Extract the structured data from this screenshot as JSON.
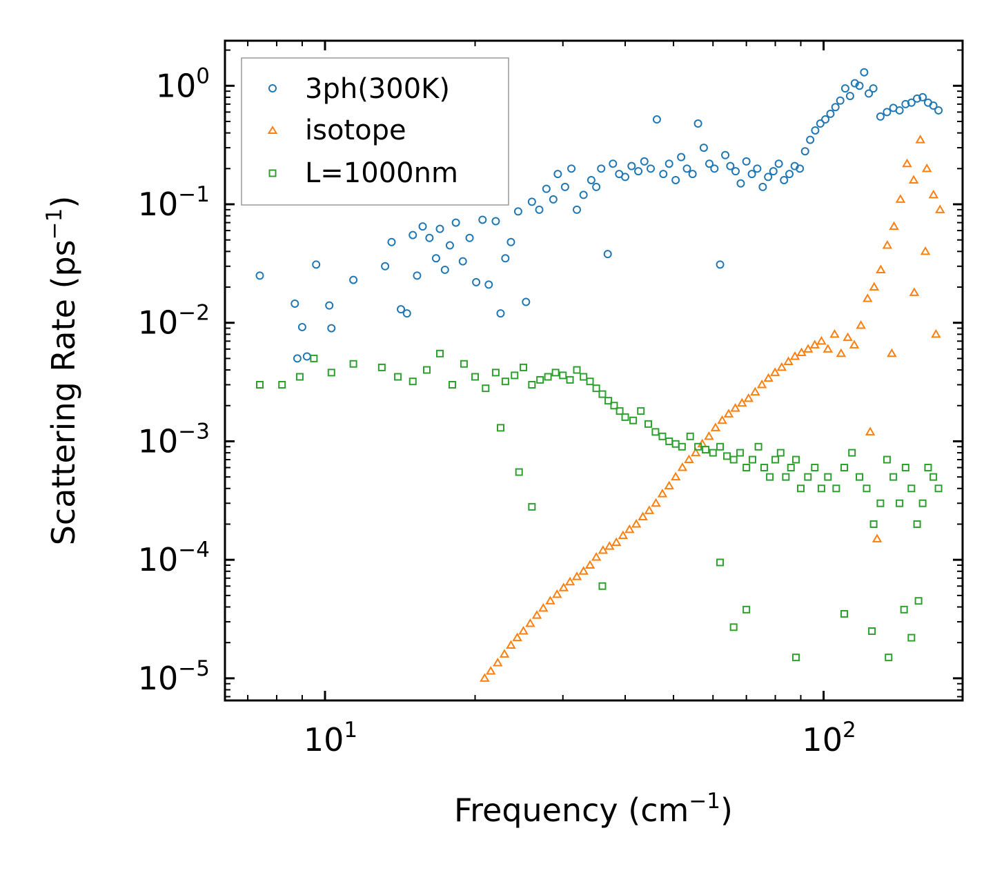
{
  "chart_data": {
    "type": "scatter",
    "xscale": "log",
    "yscale": "log",
    "xlabel": "Frequency (cm",
    "xlabel_sup": "−1",
    "xlabel_end": ")",
    "ylabel": "Scattering Rate (ps",
    "ylabel_sup": "−1",
    "ylabel_end": ")",
    "xlim": [
      6.3,
      190
    ],
    "ylim": [
      6.5e-06,
      2.4
    ],
    "x_ticks": [
      {
        "value": 10,
        "base": "10",
        "exp": "1"
      },
      {
        "value": 100,
        "base": "10",
        "exp": "2"
      }
    ],
    "y_ticks": [
      {
        "value": 1,
        "base": "10",
        "exp": "0"
      },
      {
        "value": 0.1,
        "base": "10",
        "exp": "−1"
      },
      {
        "value": 0.01,
        "base": "10",
        "exp": "−2"
      },
      {
        "value": 0.001,
        "base": "10",
        "exp": "−3"
      },
      {
        "value": 0.0001,
        "base": "10",
        "exp": "−4"
      },
      {
        "value": 1e-05,
        "base": "10",
        "exp": "−5"
      }
    ],
    "legend_position": "top-left",
    "series": [
      {
        "name": "3ph(300K)",
        "marker": "circle",
        "color": "#1f77b4",
        "x": [
          7.4,
          8.7,
          8.8,
          9.0,
          9.2,
          9.6,
          10.2,
          10.3,
          11.4,
          13.2,
          13.6,
          14.2,
          14.6,
          15.0,
          15.3,
          15.7,
          16.2,
          16.7,
          17.0,
          17.4,
          17.8,
          18.3,
          18.9,
          19.5,
          20.1,
          20.7,
          21.3,
          22.0,
          22.5,
          23.0,
          23.6,
          24.4,
          25.3,
          26.0,
          26.9,
          27.8,
          28.7,
          29.3,
          30.3,
          31.2,
          32.0,
          33.0,
          34.2,
          35.0,
          35.8,
          36.9,
          37.8,
          38.9,
          40.0,
          41.2,
          42.5,
          43.7,
          45.0,
          46.3,
          47.7,
          49.0,
          50.5,
          51.8,
          53.2,
          54.6,
          56.0,
          57.5,
          59.0,
          60.4,
          62.0,
          63.5,
          65.0,
          66.6,
          68.2,
          70.0,
          71.8,
          73.6,
          75.5,
          77.4,
          79.3,
          81.3,
          83.3,
          85.4,
          87.5,
          89.6,
          91.8,
          94.0,
          96.2,
          98.5,
          100.8,
          103.2,
          105.6,
          108.0,
          110.5,
          113.0,
          115.5,
          118.0,
          120.6,
          123.2,
          125.8,
          130.0,
          134.0,
          138.0,
          142.0,
          146.0,
          150.0,
          154.0,
          158.0,
          162.0,
          166.0,
          170.0
        ],
        "y": [
          0.025,
          0.0145,
          0.005,
          0.0092,
          0.0052,
          0.031,
          0.014,
          0.009,
          0.023,
          0.03,
          0.048,
          0.013,
          0.012,
          0.055,
          0.025,
          0.065,
          0.052,
          0.035,
          0.062,
          0.028,
          0.045,
          0.07,
          0.033,
          0.052,
          0.022,
          0.074,
          0.021,
          0.072,
          0.012,
          0.035,
          0.048,
          0.087,
          0.015,
          0.105,
          0.09,
          0.135,
          0.11,
          0.18,
          0.14,
          0.2,
          0.09,
          0.12,
          0.16,
          0.14,
          0.2,
          0.038,
          0.22,
          0.18,
          0.17,
          0.21,
          0.19,
          0.23,
          0.2,
          0.52,
          0.18,
          0.22,
          0.16,
          0.25,
          0.2,
          0.18,
          0.48,
          0.3,
          0.22,
          0.2,
          0.031,
          0.26,
          0.21,
          0.19,
          0.15,
          0.23,
          0.18,
          0.2,
          0.14,
          0.17,
          0.19,
          0.22,
          0.16,
          0.18,
          0.21,
          0.2,
          0.28,
          0.35,
          0.42,
          0.48,
          0.52,
          0.58,
          0.66,
          0.75,
          0.95,
          0.82,
          1.05,
          1.0,
          1.3,
          0.86,
          0.95,
          0.55,
          0.6,
          0.65,
          0.62,
          0.7,
          0.72,
          0.78,
          0.8,
          0.72,
          0.68,
          0.62
        ]
      },
      {
        "name": "isotope",
        "marker": "triangle",
        "color": "#ff7f0e",
        "x": [
          20.9,
          21.5,
          22.2,
          22.9,
          23.6,
          24.3,
          25.0,
          25.8,
          26.6,
          27.4,
          28.3,
          29.2,
          30.1,
          31.0,
          32.0,
          33.0,
          34.0,
          35.0,
          36.1,
          37.2,
          38.4,
          39.6,
          40.8,
          42.1,
          43.4,
          44.7,
          46.1,
          47.5,
          49.0,
          50.5,
          52.1,
          53.7,
          55.4,
          57.1,
          58.9,
          60.7,
          62.6,
          64.5,
          66.5,
          68.6,
          70.7,
          72.9,
          75.2,
          77.5,
          79.9,
          82.4,
          85.0,
          87.6,
          90.3,
          93.1,
          96.0,
          99.0,
          102.0,
          105.2,
          108.4,
          111.8,
          115.2,
          118.8,
          122.5,
          126.3,
          130.2,
          134.2,
          138.4,
          142.6,
          147.0,
          151.6,
          156.3,
          161.1,
          166.1,
          171.2,
          124.0,
          128.0,
          137.0,
          152.0,
          160.0,
          168.0
        ],
        "y": [
          1e-05,
          1.15e-05,
          1.35e-05,
          1.6e-05,
          1.9e-05,
          2.2e-05,
          2.5e-05,
          2.9e-05,
          3.4e-05,
          3.9e-05,
          4.5e-05,
          5.1e-05,
          5.8e-05,
          6.5e-05,
          7.2e-05,
          8e-05,
          9e-05,
          0.000105,
          0.00012,
          0.00013,
          0.00014,
          0.00016,
          0.00018,
          0.0002,
          0.00023,
          0.00026,
          0.0003,
          0.00036,
          0.00042,
          0.0005,
          0.0006,
          0.0007,
          0.0008,
          0.00095,
          0.0011,
          0.0013,
          0.0015,
          0.0017,
          0.0019,
          0.0021,
          0.0023,
          0.0026,
          0.003,
          0.0034,
          0.0038,
          0.0042,
          0.0047,
          0.0052,
          0.0056,
          0.006,
          0.0065,
          0.007,
          0.006,
          0.008,
          0.0055,
          0.0075,
          0.0065,
          0.0095,
          0.016,
          0.02,
          0.028,
          0.045,
          0.065,
          0.11,
          0.22,
          0.16,
          0.35,
          0.2,
          0.12,
          0.09,
          0.0012,
          0.00015,
          0.0055,
          0.018,
          0.04,
          0.008
        ]
      },
      {
        "name": "L=1000nm",
        "marker": "square",
        "color": "#2ca02c",
        "x": [
          7.4,
          8.2,
          8.9,
          9.5,
          10.3,
          11.4,
          13.0,
          14.0,
          15.0,
          16.0,
          17.0,
          18.0,
          19.0,
          20.0,
          21.0,
          22.0,
          23.0,
          24.0,
          25.0,
          26.0,
          27.0,
          28.0,
          29.0,
          30.0,
          31.0,
          32.0,
          33.0,
          34.0,
          35.0,
          36.0,
          37.0,
          38.0,
          39.0,
          40.0,
          41.5,
          43.0,
          44.5,
          46.0,
          47.5,
          49.0,
          50.5,
          52.0,
          54.0,
          56.0,
          58.0,
          60.0,
          62.0,
          64.0,
          66.0,
          68.0,
          70.0,
          72.0,
          74.0,
          76.0,
          78.0,
          80.0,
          82.0,
          84.0,
          86.0,
          88.0,
          90.0,
          93.0,
          96.0,
          99.0,
          102.0,
          106.0,
          110.0,
          114.0,
          118.0,
          122.0,
          126.0,
          130.0,
          134.0,
          138.0,
          142.0,
          146.0,
          150.0,
          154.0,
          158.0,
          162.0,
          166.0,
          170.0,
          22.5,
          24.5,
          26.0,
          36.0,
          62.0,
          66.0,
          70.0,
          88.0,
          110.0,
          125.0,
          135.0,
          145.0,
          150.0,
          155.0
        ],
        "y": [
          0.003,
          0.003,
          0.0035,
          0.005,
          0.0038,
          0.0045,
          0.0042,
          0.0035,
          0.0032,
          0.004,
          0.0055,
          0.003,
          0.0045,
          0.0035,
          0.0028,
          0.0038,
          0.0032,
          0.0036,
          0.0042,
          0.003,
          0.0033,
          0.0035,
          0.0038,
          0.0036,
          0.0033,
          0.004,
          0.0035,
          0.0032,
          0.0028,
          0.0025,
          0.0022,
          0.002,
          0.0018,
          0.0016,
          0.0015,
          0.0018,
          0.0014,
          0.0012,
          0.0011,
          0.001,
          0.00095,
          0.0009,
          0.0011,
          0.0009,
          0.00085,
          0.0008,
          0.0009,
          0.00075,
          0.0007,
          0.0008,
          0.0006,
          0.0007,
          0.0009,
          0.0006,
          0.0005,
          0.0007,
          0.0008,
          0.0005,
          0.0006,
          0.0007,
          0.0004,
          0.0005,
          0.0006,
          0.0004,
          0.0005,
          0.0004,
          0.0006,
          0.0008,
          0.0005,
          0.0004,
          0.0002,
          0.0003,
          0.0007,
          0.0005,
          0.0003,
          0.0006,
          0.0004,
          0.0002,
          0.0003,
          0.0006,
          0.0005,
          0.0004,
          0.0013,
          0.00055,
          0.00028,
          6e-05,
          9.5e-05,
          2.7e-05,
          3.8e-05,
          1.5e-05,
          3.5e-05,
          2.5e-05,
          1.5e-05,
          3.8e-05,
          2.2e-05,
          4.5e-05
        ]
      }
    ]
  }
}
